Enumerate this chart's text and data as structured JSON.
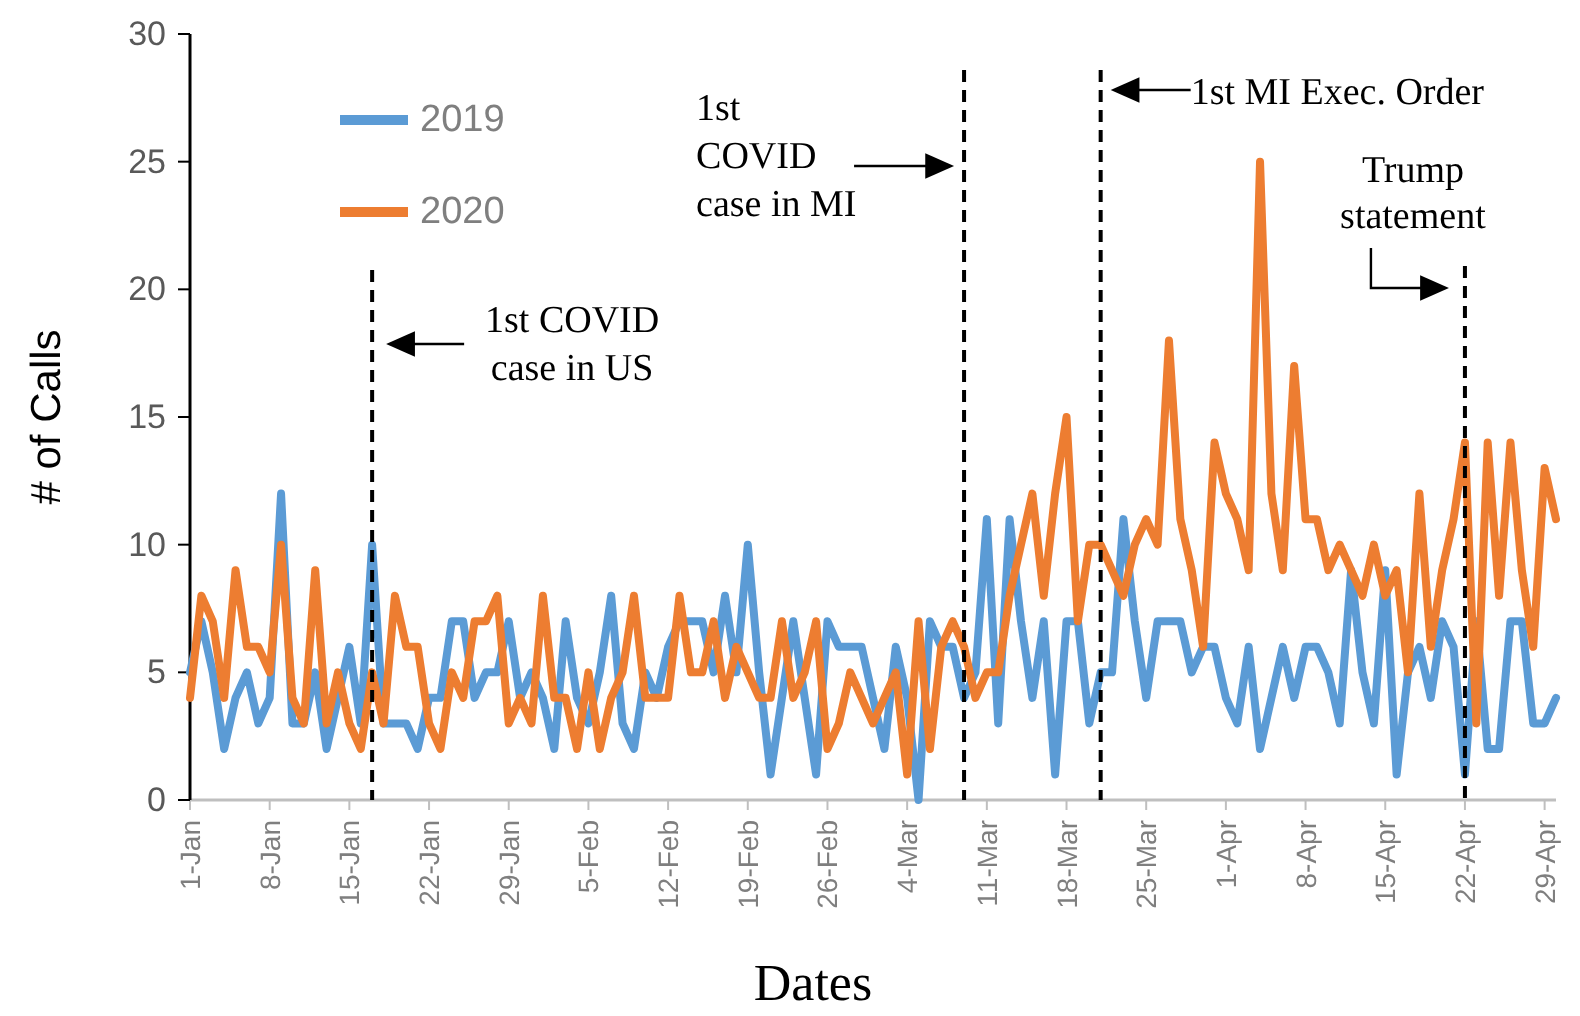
{
  "chart_data": {
    "type": "line",
    "xlabel": "Dates",
    "ylabel": "# of Calls",
    "x": [
      "--01-01",
      "--01-02",
      "--01-03",
      "--01-04",
      "--01-05",
      "--01-06",
      "--01-07",
      "--01-08",
      "--01-09",
      "--01-10",
      "--01-11",
      "--01-12",
      "--01-13",
      "--01-14",
      "--01-15",
      "--01-16",
      "--01-17",
      "--01-18",
      "--01-19",
      "--01-20",
      "--01-21",
      "--01-22",
      "--01-23",
      "--01-24",
      "--01-25",
      "--01-26",
      "--01-27",
      "--01-28",
      "--01-29",
      "--01-30",
      "--01-31",
      "--02-01",
      "--02-02",
      "--02-03",
      "--02-04",
      "--02-05",
      "--02-06",
      "--02-07",
      "--02-08",
      "--02-09",
      "--02-10",
      "--02-11",
      "--02-12",
      "--02-13",
      "--02-14",
      "--02-15",
      "--02-16",
      "--02-17",
      "--02-18",
      "--02-19",
      "--02-20",
      "--02-21",
      "--02-22",
      "--02-23",
      "--02-24",
      "--02-25",
      "--02-26",
      "--02-27",
      "--02-28",
      "--02-29",
      "--03-01",
      "--03-02",
      "--03-03",
      "--03-04",
      "--03-05",
      "--03-06",
      "--03-07",
      "--03-08",
      "--03-09",
      "--03-10",
      "--03-11",
      "--03-12",
      "--03-13",
      "--03-14",
      "--03-15",
      "--03-16",
      "--03-17",
      "--03-18",
      "--03-19",
      "--03-20",
      "--03-21",
      "--03-22",
      "--03-23",
      "--03-24",
      "--03-25",
      "--03-26",
      "--03-27",
      "--03-28",
      "--03-29",
      "--03-30",
      "--03-31",
      "--04-01",
      "--04-02",
      "--04-03",
      "--04-04",
      "--04-05",
      "--04-06",
      "--04-07",
      "--04-08",
      "--04-09",
      "--04-10",
      "--04-11",
      "--04-12",
      "--04-13",
      "--04-14",
      "--04-15",
      "--04-16",
      "--04-17",
      "--04-18",
      "--04-19",
      "--04-20",
      "--04-21",
      "--04-22",
      "--04-23",
      "--04-24",
      "--04-25",
      "--04-26",
      "--04-27",
      "--04-28",
      "--04-29",
      "--04-30"
    ],
    "series": [
      {
        "name": "2019",
        "color": "#5b9bd5",
        "values": [
          5,
          7,
          5,
          2,
          4,
          5,
          3,
          4,
          12,
          3,
          3,
          5,
          2,
          4,
          6,
          3,
          10,
          3,
          3,
          3,
          2,
          4,
          4,
          7,
          7,
          4,
          5,
          5,
          7,
          4,
          5,
          4,
          2,
          7,
          4,
          3,
          5,
          8,
          3,
          2,
          5,
          4,
          6,
          7,
          7,
          7,
          5,
          8,
          5,
          10,
          5,
          1,
          4,
          7,
          4,
          1,
          7,
          6,
          6,
          6,
          4,
          2,
          6,
          4,
          0,
          7,
          6,
          6,
          4,
          5,
          11,
          3,
          11,
          7,
          4,
          7,
          1,
          7,
          7,
          3,
          5,
          5,
          11,
          7,
          4,
          7,
          7,
          7,
          5,
          6,
          6,
          4,
          3,
          6,
          2,
          4,
          6,
          4,
          6,
          6,
          5,
          3,
          9,
          5,
          3,
          9,
          1,
          5,
          6,
          4,
          7,
          6,
          1,
          7,
          2,
          2,
          7,
          7,
          3,
          3,
          4
        ]
      },
      {
        "name": "2020",
        "color": "#ed7d31",
        "values": [
          4,
          8,
          7,
          4,
          9,
          6,
          6,
          5,
          10,
          4,
          3,
          9,
          3,
          5,
          3,
          2,
          5,
          3,
          8,
          6,
          6,
          3,
          2,
          5,
          4,
          7,
          7,
          8,
          3,
          4,
          3,
          8,
          4,
          4,
          2,
          5,
          2,
          4,
          5,
          8,
          4,
          4,
          4,
          8,
          5,
          5,
          7,
          4,
          6,
          5,
          4,
          4,
          7,
          4,
          5,
          7,
          2,
          3,
          5,
          4,
          3,
          4,
          5,
          1,
          7,
          2,
          6,
          7,
          6,
          4,
          5,
          5,
          8,
          10,
          12,
          8,
          12,
          15,
          7,
          10,
          10,
          9,
          8,
          10,
          11,
          10,
          18,
          11,
          9,
          6,
          14,
          12,
          11,
          9,
          25,
          12,
          9,
          17,
          11,
          11,
          9,
          10,
          9,
          8,
          10,
          8,
          9,
          5,
          12,
          6,
          9,
          11,
          14,
          3,
          14,
          8,
          14,
          9,
          6,
          13,
          11
        ]
      }
    ],
    "xlim": [
      "--01-01",
      "--04-30"
    ],
    "xticks": [
      {
        "value": "--01-01",
        "label": "1-Jan"
      },
      {
        "value": "--01-08",
        "label": "8-Jan"
      },
      {
        "value": "--01-15",
        "label": "15-Jan"
      },
      {
        "value": "--01-22",
        "label": "22-Jan"
      },
      {
        "value": "--01-29",
        "label": "29-Jan"
      },
      {
        "value": "--02-05",
        "label": "5-Feb"
      },
      {
        "value": "--02-12",
        "label": "12-Feb"
      },
      {
        "value": "--02-19",
        "label": "19-Feb"
      },
      {
        "value": "--02-26",
        "label": "26-Feb"
      },
      {
        "value": "--03-04",
        "label": "4-Mar"
      },
      {
        "value": "--03-11",
        "label": "11-Mar"
      },
      {
        "value": "--03-18",
        "label": "18-Mar"
      },
      {
        "value": "--03-25",
        "label": "25-Mar"
      },
      {
        "value": "--04-01",
        "label": "1-Apr"
      },
      {
        "value": "--04-08",
        "label": "8-Apr"
      },
      {
        "value": "--04-15",
        "label": "15-Apr"
      },
      {
        "value": "--04-22",
        "label": "22-Apr"
      },
      {
        "value": "--04-29",
        "label": "29-Apr"
      }
    ],
    "ylim": [
      0,
      30
    ],
    "yticks": [
      0,
      5,
      10,
      15,
      20,
      25,
      30
    ],
    "ref_lines": [
      {
        "axis": "x",
        "value": "--01-17",
        "label": "1st COVID\ncase in US",
        "color": "#000000",
        "line_style": "dashed"
      },
      {
        "axis": "x",
        "value": "--03-09",
        "label": "1st\nCOVID\ncase in MI",
        "color": "#000000",
        "line_style": "dashed"
      },
      {
        "axis": "x",
        "value": "--03-21",
        "label": "1st MI Exec. Order",
        "color": "#000000",
        "line_style": "dashed"
      },
      {
        "axis": "x",
        "value": "--04-22",
        "label": "Trump\nstatement",
        "color": "#000000",
        "line_style": "dashed"
      }
    ],
    "legend": "top left",
    "grid": false,
    "marker": "none",
    "line_style": "solid"
  }
}
